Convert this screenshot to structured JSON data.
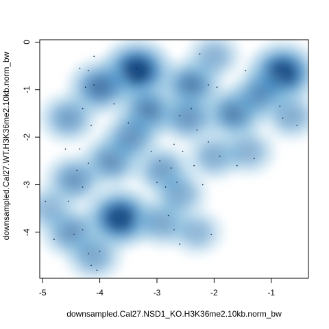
{
  "chart_data": {
    "type": "scatter",
    "subtype": "smoothScatter density",
    "xlabel": "downsampled.Cal27.NSD1_KO.H3K36me2.10kb.norm_bw",
    "ylabel": "downsampled.Cal27.WT.H3K36me2.10kb.norm_bw",
    "xlim": [
      -5.05,
      -0.35
    ],
    "ylim": [
      -4.97,
      0.05
    ],
    "x_ticks": [
      "-5",
      "-4",
      "-3",
      "-2",
      "-1"
    ],
    "y_ticks": [
      "0",
      "-1",
      "-2",
      "-3",
      "-4"
    ],
    "grid": false,
    "legend": "none",
    "colors": {
      "density_low": "#ffffff",
      "density_high": "#08306b",
      "points": "#1f2f4a",
      "frame": "#000000"
    },
    "density_clusters": [
      {
        "x": -3.35,
        "y": -0.6,
        "weight": 1.0
      },
      {
        "x": -0.8,
        "y": -0.65,
        "weight": 0.95
      },
      {
        "x": -3.65,
        "y": -3.7,
        "weight": 0.95
      },
      {
        "x": -4.0,
        "y": -0.95,
        "weight": 0.65
      },
      {
        "x": -2.4,
        "y": -0.9,
        "weight": 0.6
      },
      {
        "x": -3.15,
        "y": -1.45,
        "weight": 0.6
      },
      {
        "x": -1.65,
        "y": -1.5,
        "weight": 0.6
      },
      {
        "x": -1.2,
        "y": -1.1,
        "weight": 0.45
      },
      {
        "x": -3.8,
        "y": -2.5,
        "weight": 0.5
      },
      {
        "x": -3.45,
        "y": -2.0,
        "weight": 0.45
      },
      {
        "x": -2.9,
        "y": -2.7,
        "weight": 0.4
      },
      {
        "x": -2.45,
        "y": -1.6,
        "weight": 0.45
      },
      {
        "x": -4.45,
        "y": -2.9,
        "weight": 0.45
      },
      {
        "x": -4.55,
        "y": -1.6,
        "weight": 0.4
      },
      {
        "x": -4.5,
        "y": -4.0,
        "weight": 0.45
      },
      {
        "x": -4.1,
        "y": -4.5,
        "weight": 0.35
      },
      {
        "x": -2.9,
        "y": -3.8,
        "weight": 0.35
      },
      {
        "x": -2.6,
        "y": -3.2,
        "weight": 0.3
      },
      {
        "x": -2.0,
        "y": -2.4,
        "weight": 0.3
      },
      {
        "x": -1.4,
        "y": -2.3,
        "weight": 0.25
      },
      {
        "x": -4.9,
        "y": -3.5,
        "weight": 0.2
      },
      {
        "x": -2.3,
        "y": -4.0,
        "weight": 0.2
      },
      {
        "x": -0.65,
        "y": -1.55,
        "weight": 0.3
      },
      {
        "x": -2.0,
        "y": -0.3,
        "weight": 0.25
      }
    ],
    "outlier_points": [
      {
        "x": -4.1,
        "y": -0.3
      },
      {
        "x": -4.2,
        "y": -0.6
      },
      {
        "x": -4.35,
        "y": -0.55
      },
      {
        "x": -4.25,
        "y": -0.95
      },
      {
        "x": -4.1,
        "y": -0.9
      },
      {
        "x": -4.3,
        "y": -1.4
      },
      {
        "x": -4.15,
        "y": -1.75
      },
      {
        "x": -4.35,
        "y": -2.25
      },
      {
        "x": -4.2,
        "y": -2.55
      },
      {
        "x": -4.3,
        "y": -3.05
      },
      {
        "x": -4.4,
        "y": -2.7
      },
      {
        "x": -4.6,
        "y": -2.25
      },
      {
        "x": -4.55,
        "y": -3.35
      },
      {
        "x": -4.3,
        "y": -3.95
      },
      {
        "x": -4.45,
        "y": -4.05
      },
      {
        "x": -4.8,
        "y": -4.15
      },
      {
        "x": -4.2,
        "y": -4.45
      },
      {
        "x": -4.15,
        "y": -4.7
      },
      {
        "x": -4.05,
        "y": -4.8
      },
      {
        "x": -4.0,
        "y": -4.4
      },
      {
        "x": -3.35,
        "y": -0.55
      },
      {
        "x": -3.1,
        "y": -2.3
      },
      {
        "x": -2.95,
        "y": -2.5
      },
      {
        "x": -3.0,
        "y": -2.95
      },
      {
        "x": -2.85,
        "y": -3.05
      },
      {
        "x": -2.75,
        "y": -2.65
      },
      {
        "x": -2.65,
        "y": -2.95
      },
      {
        "x": -2.55,
        "y": -2.3
      },
      {
        "x": -2.7,
        "y": -2.15
      },
      {
        "x": -2.35,
        "y": -2.6
      },
      {
        "x": -2.2,
        "y": -3.0
      },
      {
        "x": -2.6,
        "y": -1.55
      },
      {
        "x": -2.4,
        "y": -1.4
      },
      {
        "x": -2.3,
        "y": -1.85
      },
      {
        "x": -2.1,
        "y": -2.1
      },
      {
        "x": -1.9,
        "y": -2.4
      },
      {
        "x": -1.6,
        "y": -2.6
      },
      {
        "x": -1.3,
        "y": -2.45
      },
      {
        "x": -2.25,
        "y": -0.25
      },
      {
        "x": -2.1,
        "y": -0.9
      },
      {
        "x": -1.95,
        "y": -0.95
      },
      {
        "x": -1.45,
        "y": -0.6
      },
      {
        "x": -0.85,
        "y": -1.35
      },
      {
        "x": -0.8,
        "y": -1.6
      },
      {
        "x": -0.55,
        "y": -1.75
      },
      {
        "x": -2.8,
        "y": -3.65
      },
      {
        "x": -2.7,
        "y": -3.95
      },
      {
        "x": -2.6,
        "y": -4.25
      },
      {
        "x": -2.05,
        "y": -4.05
      },
      {
        "x": -4.95,
        "y": -3.35
      },
      {
        "x": -3.75,
        "y": -1.3
      },
      {
        "x": -3.5,
        "y": -1.7
      }
    ]
  }
}
